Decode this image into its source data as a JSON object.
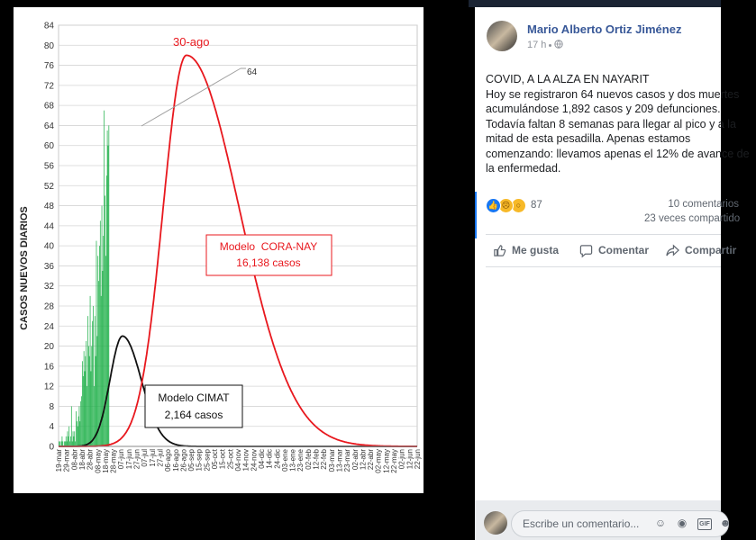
{
  "chart_data": {
    "type": "bar",
    "ylabel": "CASOS NUEVOS DIARIOS",
    "ylim": [
      0,
      84
    ],
    "yticks": [
      "0",
      "4",
      "8",
      "12",
      "16",
      "20",
      "24",
      "28",
      "32",
      "36",
      "40",
      "44",
      "48",
      "52",
      "56",
      "60",
      "64",
      "68",
      "72",
      "76",
      "80",
      "84"
    ],
    "xtick_labels": [
      "19-mar",
      "29-mar",
      "08-abr",
      "18-abr",
      "28-abr",
      "08-may",
      "18-may",
      "28-may",
      "07-jun",
      "17-jun",
      "27-jun",
      "07-jul",
      "17-jul",
      "27-jul",
      "06-ago",
      "16-ago",
      "26-ago",
      "05-sep",
      "15-sep",
      "25-sep",
      "05-oct",
      "15-oct",
      "25-oct",
      "04-nov",
      "14-nov",
      "24-nov",
      "04-dic",
      "14-dic",
      "24-dic",
      "03-ene",
      "13-ene",
      "23-ene",
      "02-feb",
      "12-feb",
      "22-feb",
      "03-mar",
      "13-mar",
      "23-mar",
      "02-abr",
      "12-abr",
      "22-abr",
      "02-may",
      "12-may",
      "22-may",
      "02-jun",
      "12-jun",
      "22-jun"
    ],
    "bar_series": {
      "name": "casos diarios",
      "color": "#22b14c",
      "values": [
        1,
        1,
        0,
        1,
        2,
        1,
        0,
        1,
        1,
        2,
        1,
        3,
        2,
        4,
        1,
        2,
        8,
        1,
        3,
        2,
        3,
        1,
        7,
        5,
        4,
        6,
        8,
        5,
        9,
        10,
        17,
        14,
        19,
        15,
        18,
        21,
        12,
        26,
        20,
        18,
        30,
        15,
        20,
        25,
        28,
        12,
        26,
        18,
        41,
        22,
        38,
        33,
        40,
        45,
        30,
        48,
        35,
        42,
        67,
        50,
        38,
        54,
        63,
        60,
        64
      ]
    },
    "curves": [
      {
        "name": "Modelo CORA-NAY",
        "color": "#e8181e",
        "peak_label": "30-ago",
        "peak_value": 78
      },
      {
        "name": "Modelo CIMAT",
        "color": "#111111",
        "peak_value": 22
      }
    ],
    "annotations": {
      "peak_label": "30-ago",
      "last_value_label": "64",
      "cora_title": "Modelo  CORA-NAY",
      "cora_total": "16,138 casos",
      "cimat_title": "Modelo CIMAT",
      "cimat_total": "2,164 casos"
    },
    "grid": true
  },
  "post": {
    "author": "Mario Alberto Ortiz Jiménez",
    "time": "17 h",
    "text_lines": [
      "COVID, A LA ALZA EN NAYARIT",
      "Hoy se registraron 64 nuevos casos y dos muertes",
      "acumulándose 1,892 casos y 209 defunciones.",
      "Todavía faltan 8 semanas para llegar al pico y a la",
      "mitad de esta pesadilla. Apenas estamos",
      "comenzando: llevamos apenas el 12% de avance de",
      "la enfermedad."
    ],
    "reaction_count": "87",
    "comments": "10 comentarios",
    "shares": "23 veces compartido",
    "actions": {
      "like": "Me gusta",
      "comment": "Comentar",
      "share": "Compartir"
    },
    "comment_placeholder": "Escribe un comentario...",
    "icons": [
      "like-icon",
      "sad-icon",
      "wow-icon",
      "thumb-icon",
      "speech-bubble-icon",
      "share-arrow-icon",
      "emoji-icon",
      "camera-icon",
      "gif-icon",
      "sticker-icon",
      "globe-icon"
    ],
    "colors": {
      "link": "#385898",
      "like": "#1877f2",
      "muted": "#606770"
    }
  }
}
